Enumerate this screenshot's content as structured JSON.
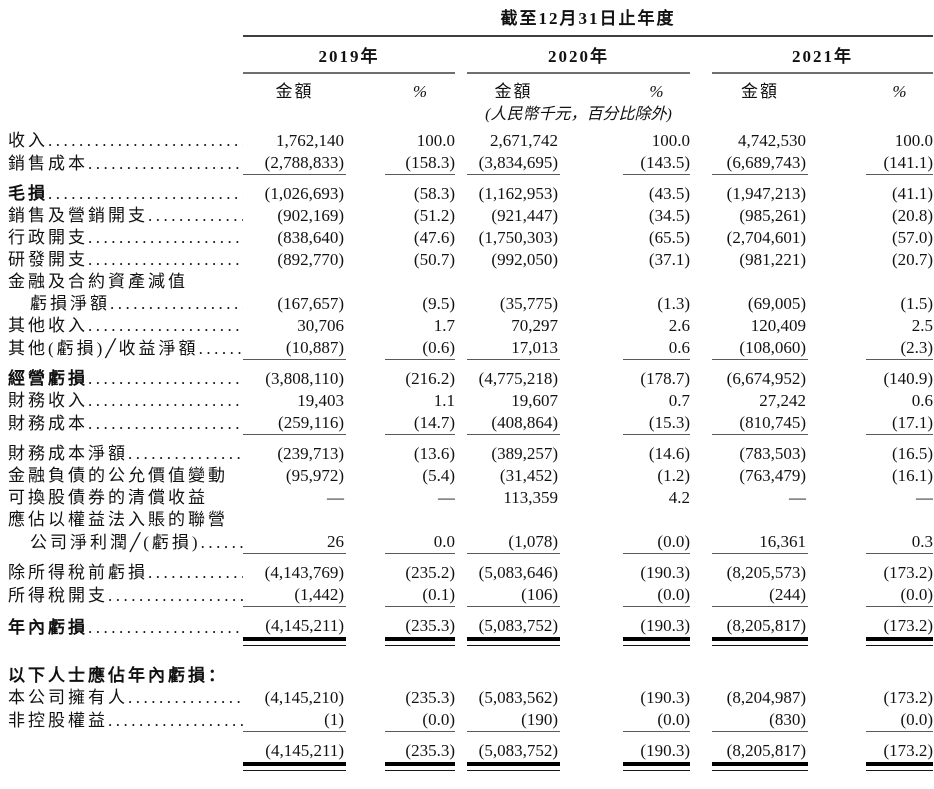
{
  "colors": {
    "background": "#ffffff",
    "text": "#111111",
    "rule": "#5a5a5a",
    "total_rule": "#000000"
  },
  "table": {
    "period_title": "截至12月31日止年度",
    "units_note": "(人民幣千元，百分比除外)",
    "years": [
      "2019年",
      "2020年",
      "2021年"
    ],
    "amount_header": "金額",
    "percent_header": "%",
    "rows": [
      {
        "label": "收入",
        "dots": true,
        "values": [
          "1,762,140",
          "100.0",
          "2,671,742",
          "100.0",
          "4,742,530",
          "100.0"
        ]
      },
      {
        "label": "銷售成本",
        "dots": true,
        "rule_below": "single",
        "values": [
          "(2,788,833)",
          "(158.3)",
          "(3,834,695)",
          "(143.5)",
          "(6,689,743)",
          "(141.1)"
        ]
      },
      {
        "label": "毛損",
        "bold": true,
        "dots": true,
        "values": [
          "(1,026,693)",
          "(58.3)",
          "(1,162,953)",
          "(43.5)",
          "(1,947,213)",
          "(41.1)"
        ]
      },
      {
        "label": "銷售及營銷開支",
        "dots": true,
        "values": [
          "(902,169)",
          "(51.2)",
          "(921,447)",
          "(34.5)",
          "(985,261)",
          "(20.8)"
        ]
      },
      {
        "label": "行政開支",
        "dots": true,
        "values": [
          "(838,640)",
          "(47.6)",
          "(1,750,303)",
          "(65.5)",
          "(2,704,601)",
          "(57.0)"
        ]
      },
      {
        "label": "研發開支",
        "dots": true,
        "values": [
          "(892,770)",
          "(50.7)",
          "(992,050)",
          "(37.1)",
          "(981,221)",
          "(20.7)"
        ]
      },
      {
        "label": "金融及合約資產減值",
        "values": [
          "",
          "",
          "",
          "",
          "",
          ""
        ]
      },
      {
        "label": "虧損淨額",
        "indent": true,
        "dots": true,
        "values": [
          "(167,657)",
          "(9.5)",
          "(35,775)",
          "(1.3)",
          "(69,005)",
          "(1.5)"
        ]
      },
      {
        "label": "其他收入",
        "dots": true,
        "values": [
          "30,706",
          "1.7",
          "70,297",
          "2.6",
          "120,409",
          "2.5"
        ]
      },
      {
        "label": "其他(虧損)╱收益淨額",
        "dots": true,
        "rule_below": "single",
        "values": [
          "(10,887)",
          "(0.6)",
          "17,013",
          "0.6",
          "(108,060)",
          "(2.3)"
        ]
      },
      {
        "label": "經營虧損",
        "bold": true,
        "dots": true,
        "values": [
          "(3,808,110)",
          "(216.2)",
          "(4,775,218)",
          "(178.7)",
          "(6,674,952)",
          "(140.9)"
        ]
      },
      {
        "label": "財務收入",
        "dots": true,
        "values": [
          "19,403",
          "1.1",
          "19,607",
          "0.7",
          "27,242",
          "0.6"
        ]
      },
      {
        "label": "財務成本",
        "dots": true,
        "rule_below": "single",
        "values": [
          "(259,116)",
          "(14.7)",
          "(408,864)",
          "(15.3)",
          "(810,745)",
          "(17.1)"
        ]
      },
      {
        "label": "財務成本淨額",
        "dots": true,
        "values": [
          "(239,713)",
          "(13.6)",
          "(389,257)",
          "(14.6)",
          "(783,503)",
          "(16.5)"
        ]
      },
      {
        "label": "金融負債的公允價值變動",
        "values": [
          "(95,972)",
          "(5.4)",
          "(31,452)",
          "(1.2)",
          "(763,479)",
          "(16.1)"
        ]
      },
      {
        "label": "可換股債券的清償收益",
        "values": [
          "—",
          "—",
          "113,359",
          "4.2",
          "—",
          "—"
        ]
      },
      {
        "label": "應佔以權益法入賬的聯營",
        "values": [
          "",
          "",
          "",
          "",
          "",
          ""
        ]
      },
      {
        "label": "公司淨利潤╱(虧損)",
        "indent": true,
        "dots": true,
        "rule_below": "single",
        "values": [
          "26",
          "0.0",
          "(1,078)",
          "(0.0)",
          "16,361",
          "0.3"
        ]
      },
      {
        "label": "除所得稅前虧損",
        "dots": true,
        "values": [
          "(4,143,769)",
          "(235.2)",
          "(5,083,646)",
          "(190.3)",
          "(8,205,573)",
          "(173.2)"
        ]
      },
      {
        "label": "所得稅開支",
        "dots": true,
        "rule_below": "single",
        "values": [
          "(1,442)",
          "(0.1)",
          "(106)",
          "(0.0)",
          "(244)",
          "(0.0)"
        ]
      },
      {
        "label": "年內虧損",
        "bold": true,
        "dots": true,
        "rule_below": "double",
        "values": [
          "(4,145,211)",
          "(235.3)",
          "(5,083,752)",
          "(190.3)",
          "(8,205,817)",
          "(173.2)"
        ]
      },
      {
        "label": "以下人士應佔年內虧損：",
        "bold": true,
        "gap_before": true,
        "values": [
          "",
          "",
          "",
          "",
          "",
          ""
        ]
      },
      {
        "label": "本公司擁有人",
        "dots": true,
        "values": [
          "(4,145,210)",
          "(235.3)",
          "(5,083,562)",
          "(190.3)",
          "(8,204,987)",
          "(173.2)"
        ]
      },
      {
        "label": "非控股權益",
        "dots": true,
        "rule_below": "single",
        "values": [
          "(1)",
          "(0.0)",
          "(190)",
          "(0.0)",
          "(830)",
          "(0.0)"
        ]
      },
      {
        "label": "",
        "rule_below": "double",
        "values": [
          "(4,145,211)",
          "(235.3)",
          "(5,083,752)",
          "(190.3)",
          "(8,205,817)",
          "(173.2)"
        ]
      }
    ]
  }
}
